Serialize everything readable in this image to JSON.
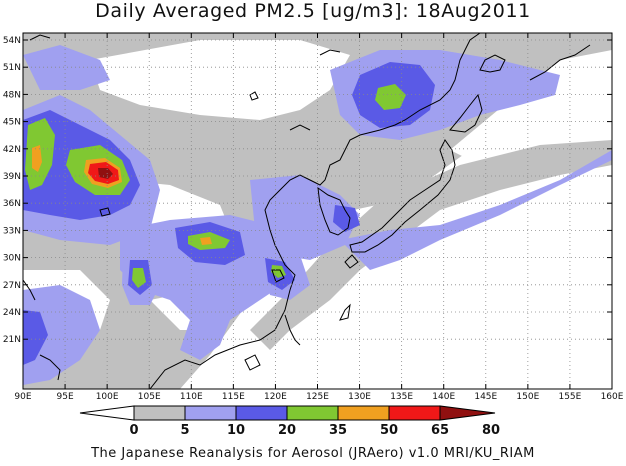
{
  "title": "Daily Averaged PM2.5 [ug/m3]: 18Aug2011",
  "credit": "The Japanese Reanalysis for Aerosol (JRAero) v1.0 MRI/KU_RIAM",
  "lat_labels": [
    "54N",
    "51N",
    "48N",
    "45N",
    "42N",
    "39N",
    "36N",
    "33N",
    "30N",
    "27N",
    "24N",
    "21N"
  ],
  "lon_labels": [
    "90E",
    "95E",
    "100E",
    "105E",
    "110E",
    "115E",
    "120E",
    "125E",
    "130E",
    "135E",
    "140E",
    "145E",
    "150E",
    "155E",
    "160E"
  ],
  "colorbar": {
    "labels": [
      "0",
      "5",
      "10",
      "20",
      "35",
      "50",
      "65",
      "80"
    ],
    "colors": [
      "#ffffff",
      "#c0c0c0",
      "#a0a0f0",
      "#5a5ae6",
      "#80c832",
      "#f0a020",
      "#f01818",
      "#901010"
    ]
  },
  "colors": {
    "land_outline": "#000000",
    "grid": "#888888"
  }
}
